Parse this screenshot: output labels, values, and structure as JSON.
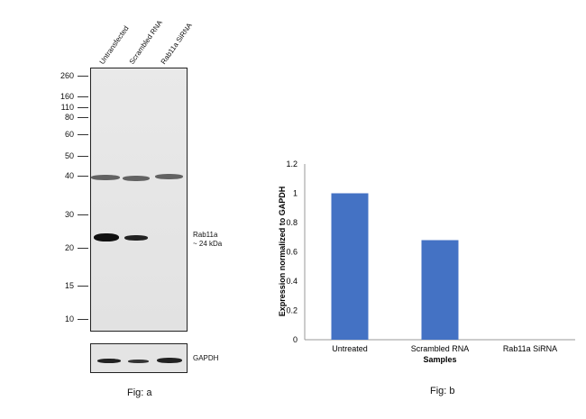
{
  "figure_a": {
    "lanes": [
      "Untransfected",
      "Scrambled RNA",
      "Rab11a SiRNA"
    ],
    "mw_markers": [
      "260",
      "160",
      "110",
      "80",
      "60",
      "50",
      "40",
      "30",
      "20",
      "15",
      "10"
    ],
    "band_label_line1": "Rab11a",
    "band_label_line2": "~ 24 kDa",
    "loading_label": "GAPDH",
    "caption": "Fig: a"
  },
  "figure_b": {
    "caption": "Fig: b"
  },
  "chart_data": {
    "type": "bar",
    "categories": [
      "Untreated",
      "Scrambled RNA",
      "Rab11a SiRNA"
    ],
    "values": [
      1.0,
      0.68,
      0
    ],
    "title": "",
    "xlabel": "Samples",
    "ylabel": "Expression normalized to GAPDH",
    "ylim": [
      0,
      1.2
    ],
    "yticks": [
      "0",
      "0.2",
      "0.4",
      "0.6",
      "0.8",
      "1",
      "1.2"
    ],
    "bar_color": "#4472C4",
    "grid": false,
    "legend": "none"
  }
}
